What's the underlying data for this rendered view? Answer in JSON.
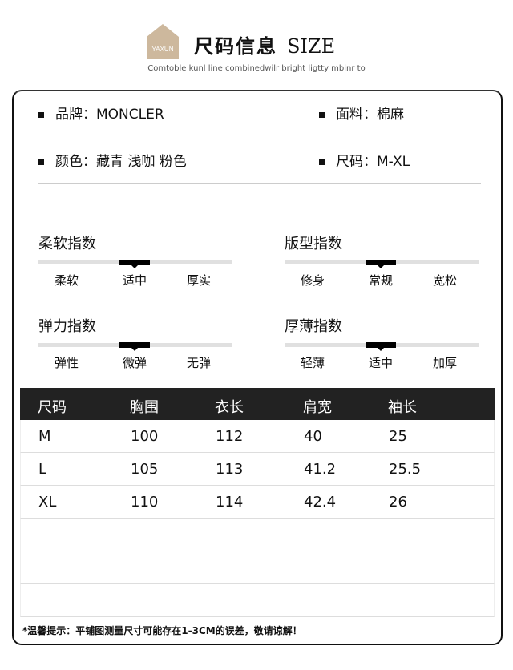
{
  "header": {
    "logo_text": "YAXUN",
    "title_cn": "尺码信息",
    "title_en": "SIZE",
    "subtitle": "Comtoble kunl line combinedwilr bright ligtty mbinr to"
  },
  "info": [
    {
      "label": "品牌：",
      "value": "MONCLER"
    },
    {
      "label": "面料：",
      "value": "棉麻"
    },
    {
      "label": "颜色：",
      "value": "藏青 浅咖 粉色"
    },
    {
      "label": "尺码：",
      "value": "M-XL"
    }
  ],
  "indices": [
    {
      "title": "柔软指数",
      "options": [
        "柔软",
        "适中",
        "厚实"
      ],
      "selected": "适中"
    },
    {
      "title": "版型指数",
      "options": [
        "修身",
        "常规",
        "宽松"
      ],
      "selected": "常规"
    },
    {
      "title": "弹力指数",
      "options": [
        "弹性",
        "微弹",
        "无弹"
      ],
      "selected": "微弹"
    },
    {
      "title": "厚薄指数",
      "options": [
        "轻薄",
        "适中",
        "加厚"
      ],
      "selected": "适中"
    }
  ],
  "table": {
    "headers": [
      "尺码",
      "胸围",
      "衣长",
      "肩宽",
      "袖长"
    ],
    "rows": [
      [
        "M",
        "100",
        "112",
        "40",
        "25"
      ],
      [
        "L",
        "105",
        "113",
        "41.2",
        "25.5"
      ],
      [
        "XL",
        "110",
        "114",
        "42.4",
        "26"
      ]
    ]
  },
  "note": "*温馨提示：平铺图测量尺寸可能存在1-3CM的误差，敬请谅解！",
  "colors": {
    "header_bg": "#222222",
    "logo": "#c9b49a"
  }
}
